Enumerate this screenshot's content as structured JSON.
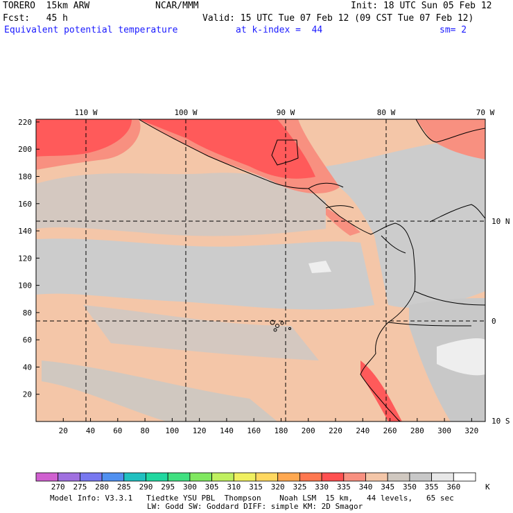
{
  "header": {
    "model": "TORERO  15km ARW",
    "org": "NCAR/MMM",
    "init": "Init: 18 UTC Sun 05 Feb 12",
    "fcst": "Fcst:   45 h",
    "valid": "Valid: 15 UTC Tue 07 Feb 12 (09 CST Tue 07 Feb 12)",
    "field": "Equivalent potential temperature",
    "level": "at k-index =  44",
    "smooth": "sm= 2"
  },
  "map": {
    "lon_labels": [
      "110 W",
      "100 W",
      "90 W",
      "80 W",
      "70 W"
    ],
    "lat_labels": [
      "10 N",
      "0",
      "10 S"
    ],
    "x_ticks": [
      "20",
      "40",
      "60",
      "80",
      "100",
      "120",
      "140",
      "160",
      "180",
      "200",
      "220",
      "240",
      "260",
      "280",
      "300",
      "320"
    ],
    "y_ticks": [
      "20",
      "40",
      "60",
      "80",
      "100",
      "120",
      "140",
      "160",
      "180",
      "200",
      "220"
    ],
    "colors": {
      "base": "#f4c6a8",
      "gray": "#cccccc",
      "gray_warm": "#d8c8bc",
      "salmon": "#f6a888",
      "red": "#ff6060",
      "red_dark": "#f04040",
      "white": "#f2f2f2"
    }
  },
  "colorbar": {
    "unit": "K",
    "levels": [
      "270",
      "275",
      "280",
      "285",
      "290",
      "295",
      "300",
      "305",
      "310",
      "315",
      "320",
      "325",
      "330",
      "335",
      "340",
      "345",
      "350",
      "355",
      "360"
    ],
    "colors": [
      "#d060d0",
      "#a070e0",
      "#7878f0",
      "#5090f0",
      "#20c0c0",
      "#20d8a0",
      "#40e080",
      "#80e860",
      "#c0f060",
      "#f0f060",
      "#ffd860",
      "#ffa850",
      "#ff7850",
      "#ff5050",
      "#f89080",
      "#f4c6a8",
      "#d0c8c0",
      "#c8c8c8",
      "#e8e8e8",
      "#ffffff"
    ]
  },
  "footer": {
    "line1": "Model Info: V3.3.1   Tiedtke YSU PBL  Thompson    Noah LSM  15 km,   44 levels,   65 sec",
    "line2": "LW: Godd SW: Goddard DIFF: simple KM: 2D Smagor"
  }
}
